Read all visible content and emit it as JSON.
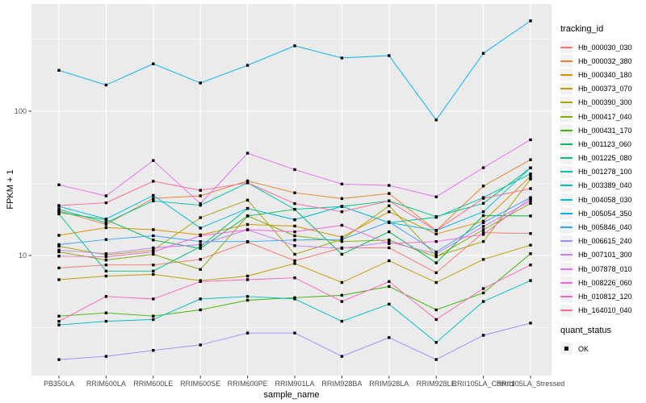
{
  "figure": {
    "background": "#FFFFFF",
    "panel_background": "#EBEBEB",
    "gridline_color": "#FFFFFF",
    "tick_label_color": "#4D4D4D",
    "point_color": "#000000"
  },
  "chart_data": {
    "type": "line",
    "title": "",
    "xlabel": "sample_name",
    "ylabel": "FPKM + 1",
    "y_scale": "log10",
    "y_ticks": [
      100,
      10
    ],
    "y_minor_ticks": [
      316.2,
      31.62,
      3.162
    ],
    "ylim": [
      1.5,
      550
    ],
    "grid": true,
    "legend_position": "right",
    "legend_title": "tracking_id",
    "point_shape": "filled-black-square",
    "x_categories": [
      "PB350LA",
      "RRIM600LA",
      "RRIM600LE",
      "RRIM600SE",
      "RRIM600PE",
      "RRIM901LA",
      "RRIM928BA",
      "RRIM928LA",
      "RRIM928LE",
      "RRII105LA_Control",
      "RRII105LA_Stressed"
    ],
    "series": [
      {
        "name": "Hb_000030_030",
        "color": "#F8766D",
        "values": [
          8.2,
          8.6,
          8.6,
          9.4,
          12.4,
          9.2,
          11.3,
          11.3,
          7.6,
          14.4,
          14.2
        ]
      },
      {
        "name": "Hb_000032_380",
        "color": "#EA8331",
        "values": [
          20.4,
          16.4,
          24.9,
          25.9,
          32.9,
          27.2,
          24.8,
          26.9,
          14.9,
          30.3,
          46.1
        ]
      },
      {
        "name": "Hb_000340_180",
        "color": "#D89000",
        "values": [
          13.8,
          15.6,
          15.1,
          13.9,
          16.4,
          16.0,
          13.4,
          20.1,
          14.1,
          17.3,
          35.4
        ]
      },
      {
        "name": "Hb_000373_070",
        "color": "#C09B00",
        "values": [
          6.8,
          7.2,
          7.4,
          6.7,
          7.2,
          8.8,
          6.5,
          9.2,
          6.5,
          9.4,
          11.8
        ]
      },
      {
        "name": "Hb_000390_300",
        "color": "#A3A500",
        "values": [
          11.6,
          10.1,
          10.9,
          18.3,
          24.2,
          10.2,
          12.9,
          22.1,
          9.9,
          12.5,
          33.9
        ]
      },
      {
        "name": "Hb_000417_040",
        "color": "#7CAE00",
        "values": [
          10.6,
          9.3,
          10.2,
          8.0,
          18.8,
          13.7,
          12.5,
          12.8,
          9.8,
          15.1,
          23.0
        ]
      },
      {
        "name": "Hb_000431_170",
        "color": "#39B600",
        "values": [
          3.8,
          4.0,
          3.8,
          4.2,
          4.9,
          5.1,
          5.3,
          6.1,
          4.2,
          5.5,
          10.3
        ]
      },
      {
        "name": "Hb_001123_060",
        "color": "#00BB4E",
        "values": [
          19.9,
          17.7,
          12.8,
          11.2,
          18.8,
          20.9,
          10.2,
          14.6,
          8.9,
          18.9,
          18.8
        ]
      },
      {
        "name": "Hb_001225_080",
        "color": "#00BF7D",
        "values": [
          19.4,
          7.8,
          7.8,
          11.5,
          21.2,
          17.7,
          21.9,
          23.9,
          18.6,
          23.0,
          40.5
        ]
      },
      {
        "name": "Hb_001278_100",
        "color": "#00C1A3",
        "values": [
          20.9,
          16.9,
          23.9,
          22.3,
          31.9,
          20.9,
          21.9,
          16.9,
          18.4,
          25.2,
          36.8
        ]
      },
      {
        "name": "Hb_003389_040",
        "color": "#00BFC4",
        "values": [
          3.3,
          3.5,
          3.6,
          5.0,
          5.2,
          5.0,
          3.5,
          4.6,
          2.5,
          4.8,
          6.7
        ]
      },
      {
        "name": "Hb_004058_030",
        "color": "#00BAE0",
        "values": [
          21.9,
          17.9,
          26.1,
          15.5,
          21.2,
          17.7,
          21.9,
          16.9,
          14.9,
          20.1,
          40.5
        ]
      },
      {
        "name": "Hb_005054_350",
        "color": "#00B0F6",
        "values": [
          192,
          152,
          213,
          157,
          208,
          284,
          234,
          243,
          87,
          252,
          423
        ]
      },
      {
        "name": "Hb_005846_040",
        "color": "#35A2FF",
        "values": [
          11.9,
          12.9,
          13.7,
          12.5,
          12.5,
          12.8,
          12.9,
          17.1,
          10.6,
          16.9,
          25.2
        ]
      },
      {
        "name": "Hb_006615_240",
        "color": "#9590FF",
        "values": [
          1.9,
          2.0,
          2.2,
          2.4,
          2.9,
          2.9,
          2.0,
          2.7,
          1.9,
          2.8,
          3.4
        ]
      },
      {
        "name": "Hb_007101_300",
        "color": "#C77CFF",
        "values": [
          10.9,
          10.3,
          11.3,
          11.9,
          15.1,
          11.7,
          11.2,
          12.4,
          10.3,
          15.9,
          23.9
        ]
      },
      {
        "name": "Hb_007878_010",
        "color": "#E76BF3",
        "values": [
          30.9,
          25.9,
          45.5,
          22.9,
          51.2,
          39.4,
          31.3,
          30.6,
          25.5,
          40.6,
          63.4
        ]
      },
      {
        "name": "Hb_008226_060",
        "color": "#FA62DB",
        "values": [
          9.9,
          9.8,
          10.6,
          13.7,
          15.1,
          14.6,
          16.2,
          12.1,
          12.5,
          14.0,
          24.9
        ]
      },
      {
        "name": "Hb_010812_120",
        "color": "#FF62BC",
        "values": [
          3.5,
          5.2,
          5.0,
          6.6,
          6.8,
          7.0,
          4.8,
          6.6,
          3.6,
          5.9,
          8.6
        ]
      },
      {
        "name": "Hb_164010_040",
        "color": "#FF6A98",
        "values": [
          22.2,
          23.2,
          32.7,
          28.3,
          31.9,
          22.9,
          20.1,
          23.9,
          14.9,
          24.9,
          29.1
        ]
      }
    ],
    "quant_legend": {
      "title": "quant_status",
      "items": [
        {
          "label": "OK",
          "marker": "black-square"
        }
      ]
    }
  }
}
